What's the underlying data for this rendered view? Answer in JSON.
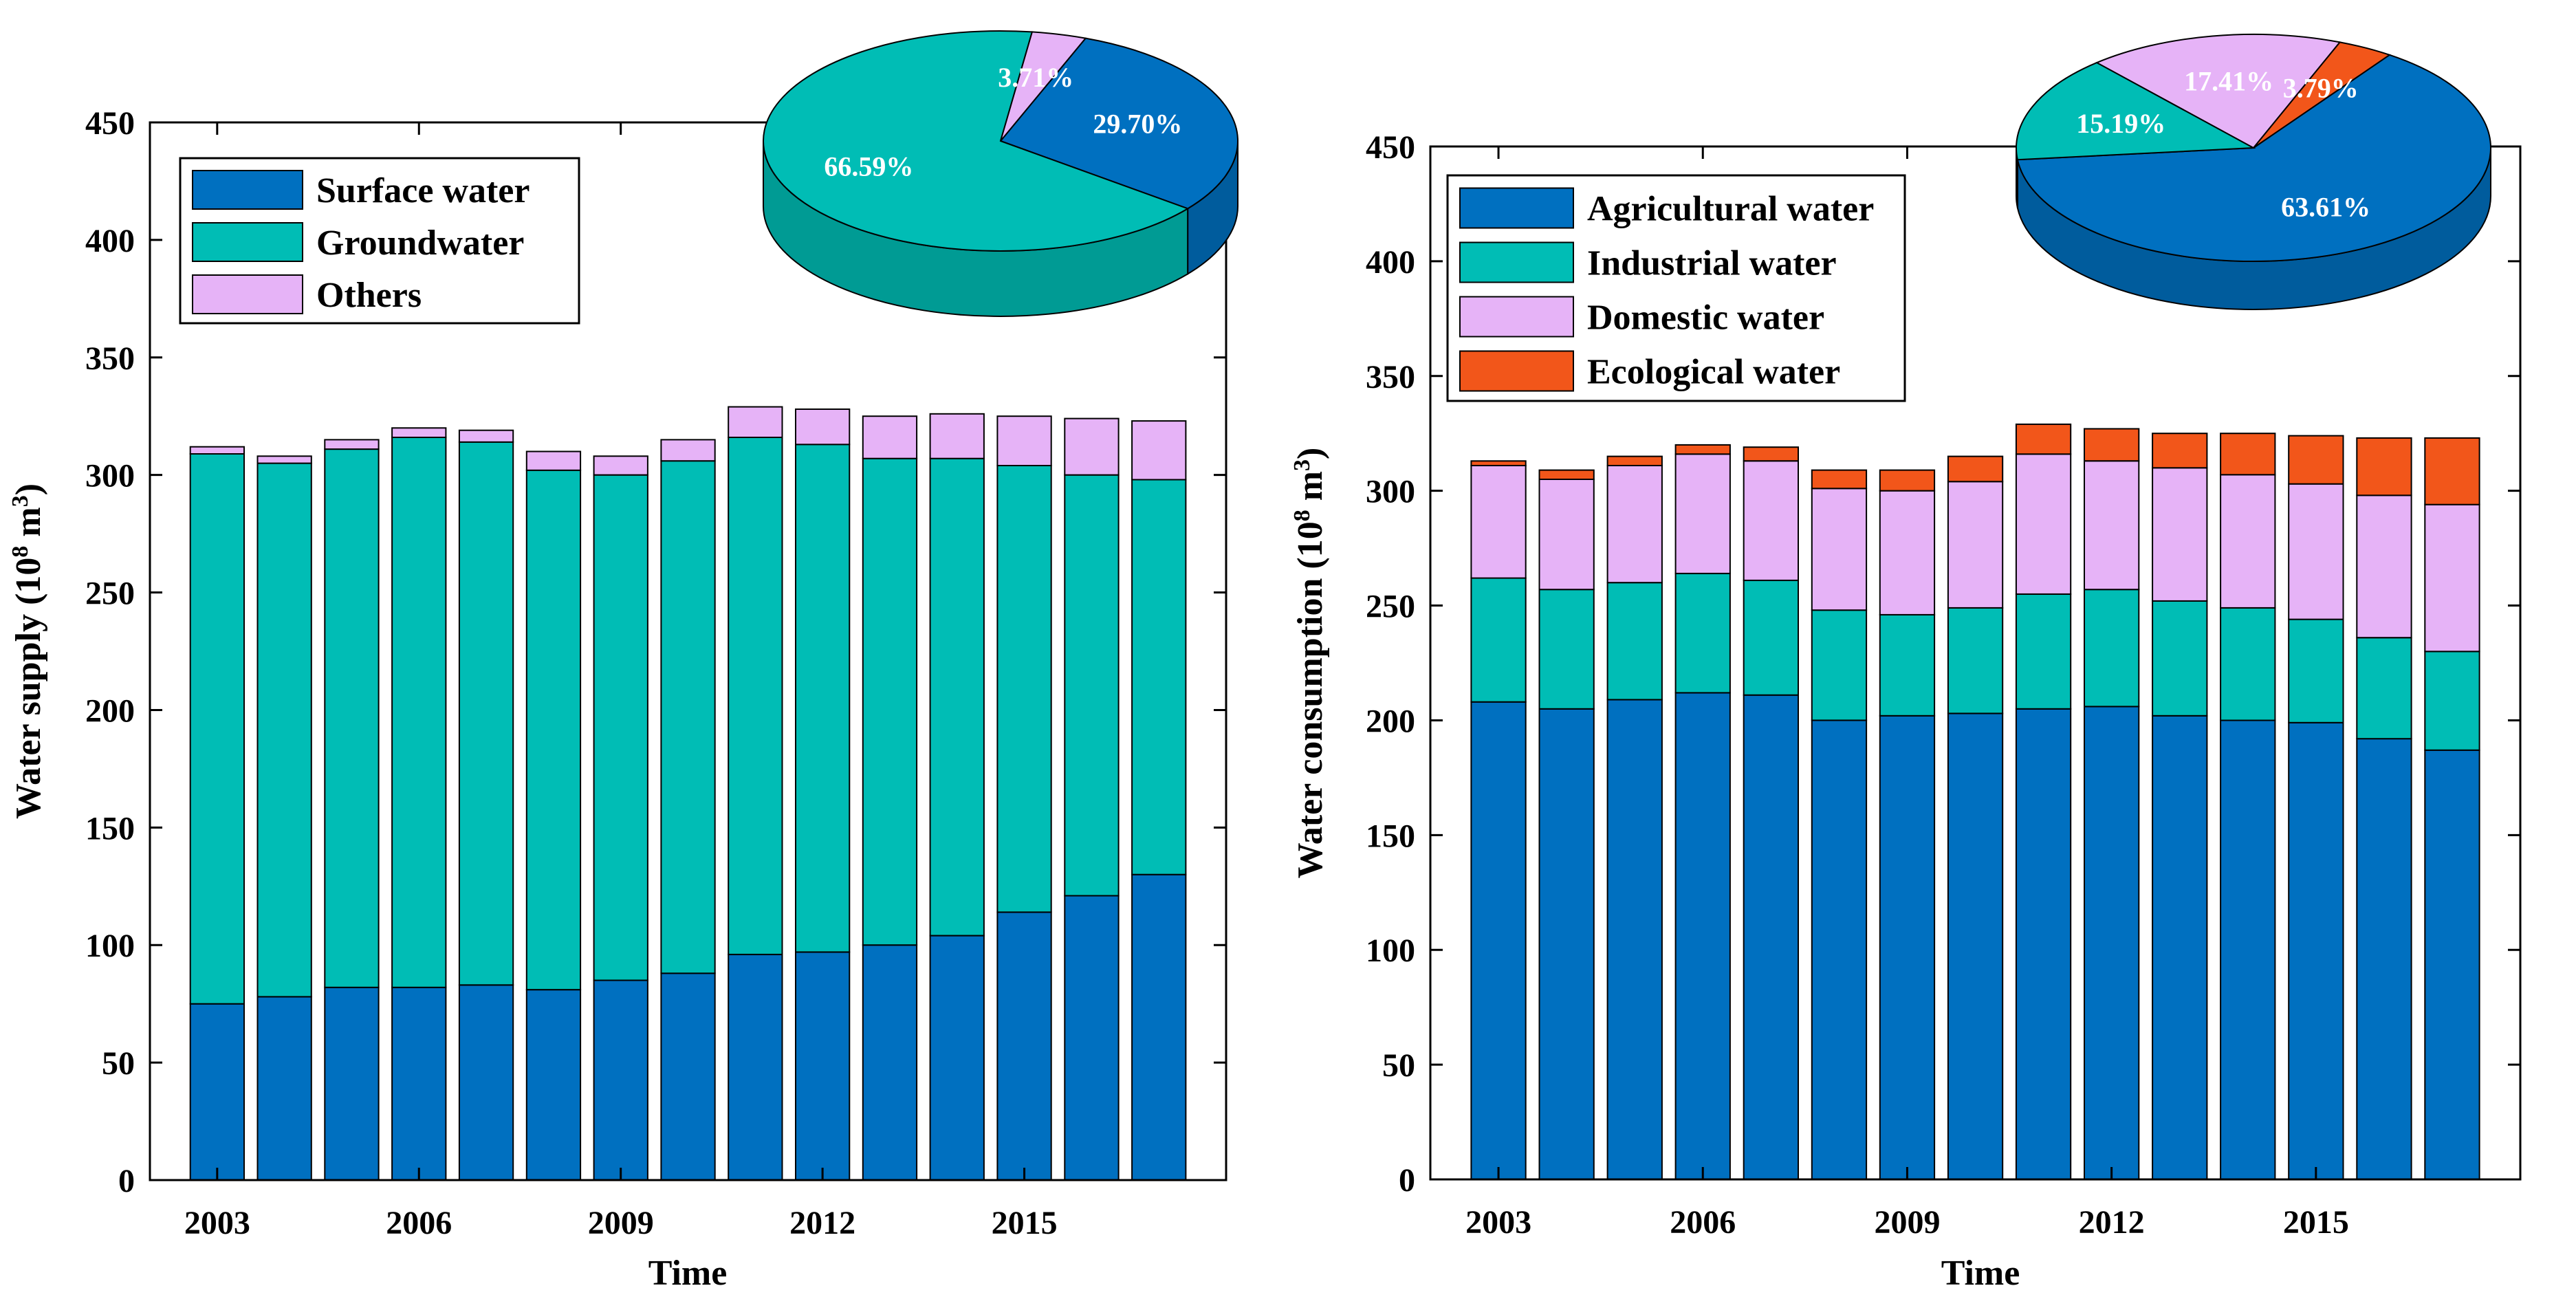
{
  "colors": {
    "surface": "#0070c0",
    "groundwater": "#00bdb5",
    "others": "#e6b3f7",
    "agricultural": "#0070c0",
    "industrial": "#00bdb5",
    "domestic": "#e6b3f7",
    "ecological": "#f2561a"
  },
  "chart_data": [
    {
      "type": "bar",
      "stacked": true,
      "ylabel": "Water supply (10",
      "ylabel_sup": "8",
      "ylabel_unit": " m",
      "ylabel_unit_sup": "3",
      "ylabel_close": ")",
      "xlabel": "Time",
      "ylim": [
        0,
        450
      ],
      "yticks": [
        0,
        50,
        100,
        150,
        200,
        250,
        300,
        350,
        400,
        450
      ],
      "xtick_labels": [
        "2003",
        "2006",
        "2009",
        "2012",
        "2015"
      ],
      "categories": [
        "2003",
        "2004",
        "2005",
        "2006",
        "2007",
        "2008",
        "2009",
        "2010",
        "2011",
        "2012",
        "2013",
        "2014",
        "2015",
        "2016",
        "2017"
      ],
      "series": [
        {
          "name": "Surface water",
          "color_key": "surface",
          "values": [
            75,
            78,
            82,
            82,
            83,
            81,
            85,
            88,
            96,
            97,
            100,
            104,
            114,
            121,
            130
          ]
        },
        {
          "name": "Groundwater",
          "color_key": "groundwater",
          "values": [
            234,
            227,
            229,
            234,
            231,
            221,
            215,
            218,
            220,
            216,
            207,
            203,
            190,
            179,
            168
          ]
        },
        {
          "name": "Others",
          "color_key": "others",
          "values": [
            3,
            3,
            4,
            4,
            5,
            8,
            8,
            9,
            13,
            15,
            18,
            19,
            21,
            24,
            25
          ]
        }
      ],
      "legend": [
        "Surface water",
        "Groundwater",
        "Others"
      ],
      "pie": {
        "slices": [
          {
            "name": "Surface water",
            "value": 29.7,
            "label": "29.70%",
            "color_key": "surface"
          },
          {
            "name": "Groundwater",
            "value": 66.59,
            "label": "66.59%",
            "color_key": "groundwater"
          },
          {
            "name": "Others",
            "value": 3.71,
            "label": "3.71%",
            "color_key": "others"
          }
        ]
      }
    },
    {
      "type": "bar",
      "stacked": true,
      "ylabel": "Water consumption (10",
      "ylabel_sup": "8",
      "ylabel_unit": " m",
      "ylabel_unit_sup": "3",
      "ylabel_close": ")",
      "xlabel": "Time",
      "ylim": [
        0,
        450
      ],
      "yticks": [
        0,
        50,
        100,
        150,
        200,
        250,
        300,
        350,
        400,
        450
      ],
      "xtick_labels": [
        "2003",
        "2006",
        "2009",
        "2012",
        "2015"
      ],
      "categories": [
        "2003",
        "2004",
        "2005",
        "2006",
        "2007",
        "2008",
        "2009",
        "2010",
        "2011",
        "2012",
        "2013",
        "2014",
        "2015",
        "2016",
        "2017"
      ],
      "series": [
        {
          "name": "Agricultural water",
          "color_key": "agricultural",
          "values": [
            208,
            205,
            209,
            212,
            211,
            200,
            202,
            203,
            205,
            206,
            202,
            200,
            199,
            192,
            187
          ]
        },
        {
          "name": "Industrial water",
          "color_key": "industrial",
          "values": [
            54,
            52,
            51,
            52,
            50,
            48,
            44,
            46,
            50,
            51,
            50,
            49,
            45,
            44,
            43
          ]
        },
        {
          "name": "Domestic water",
          "color_key": "domestic",
          "values": [
            49,
            48,
            51,
            52,
            52,
            53,
            54,
            55,
            61,
            56,
            58,
            58,
            59,
            62,
            64
          ]
        },
        {
          "name": "Ecological water",
          "color_key": "ecological",
          "values": [
            2,
            4,
            4,
            4,
            6,
            8,
            9,
            11,
            13,
            14,
            15,
            18,
            21,
            25,
            29
          ]
        }
      ],
      "legend": [
        "Agricultural water",
        "Industrial water",
        "Domestic water",
        "Ecological water"
      ],
      "pie": {
        "slices": [
          {
            "name": "Agricultural water",
            "value": 63.61,
            "label": "63.61%",
            "color_key": "agricultural"
          },
          {
            "name": "Industrial water",
            "value": 15.19,
            "label": "15.19%",
            "color_key": "industrial"
          },
          {
            "name": "Domestic water",
            "value": 17.41,
            "label": "17.41%",
            "color_key": "domestic"
          },
          {
            "name": "Ecological water",
            "value": 3.79,
            "label": "3.79%",
            "color_key": "ecological"
          }
        ]
      }
    }
  ]
}
